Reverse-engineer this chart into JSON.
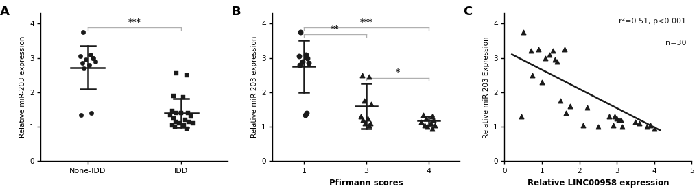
{
  "panel_A": {
    "label": "A",
    "groups": [
      "None-IDD",
      "IDD"
    ],
    "none_idd_data": [
      3.75,
      3.1,
      3.05,
      3.0,
      2.95,
      2.9,
      2.85,
      2.8,
      2.7,
      3.0,
      1.35,
      1.4
    ],
    "idd_data": [
      2.55,
      2.5,
      1.9,
      1.85,
      1.45,
      1.4,
      1.4,
      1.4,
      1.35,
      1.3,
      1.25,
      1.2,
      1.15,
      1.15,
      1.1,
      1.1,
      1.05,
      1.05,
      1.0,
      0.95
    ],
    "none_idd_mean": 2.72,
    "none_idd_sd": 0.62,
    "idd_mean": 1.4,
    "idd_sd": 0.42,
    "ylabel": "Relative miR-203 expression",
    "ylim": [
      0,
      4.3
    ],
    "yticks": [
      0,
      1,
      2,
      3,
      4
    ],
    "sig_label": "***"
  },
  "panel_B": {
    "label": "B",
    "groups": [
      "1",
      "3",
      "4"
    ],
    "score1_data": [
      3.75,
      3.1,
      3.05,
      3.0,
      2.9,
      2.85,
      2.8,
      1.35,
      1.4
    ],
    "score3_data": [
      2.5,
      2.45,
      1.75,
      1.65,
      1.3,
      1.25,
      1.2,
      1.1,
      1.1,
      1.05
    ],
    "score4_data": [
      1.35,
      1.3,
      1.25,
      1.2,
      1.15,
      1.1,
      1.05,
      1.05,
      1.0,
      0.95
    ],
    "score1_mean": 2.75,
    "score1_sd": 0.75,
    "score3_mean": 1.6,
    "score3_sd": 0.65,
    "score4_mean": 1.18,
    "score4_sd": 0.13,
    "ylabel": "Relative miR-203 expression",
    "xlabel": "Pfirmann scores",
    "ylim": [
      0,
      4.3
    ],
    "yticks": [
      0,
      1,
      2,
      3,
      4
    ],
    "sig_1_3": "**",
    "sig_1_4": "***",
    "sig_3_4": "*"
  },
  "panel_C": {
    "label": "C",
    "x_data": [
      0.45,
      0.5,
      0.7,
      0.75,
      0.9,
      1.0,
      1.1,
      1.2,
      1.3,
      1.35,
      1.4,
      1.5,
      1.6,
      1.65,
      1.75,
      2.1,
      2.2,
      2.5,
      2.8,
      2.9,
      2.95,
      3.0,
      3.05,
      3.1,
      3.15,
      3.5,
      3.6,
      3.8,
      3.9,
      4.0
    ],
    "y_data": [
      1.3,
      3.75,
      3.2,
      2.5,
      3.25,
      2.3,
      3.0,
      3.1,
      3.2,
      2.95,
      2.9,
      1.75,
      3.25,
      1.4,
      1.6,
      1.05,
      1.55,
      1.0,
      1.3,
      1.05,
      1.3,
      1.25,
      1.2,
      1.2,
      1.0,
      1.15,
      1.1,
      1.0,
      1.05,
      0.95
    ],
    "line_x": [
      0.2,
      4.15
    ],
    "line_y": [
      3.1,
      0.9
    ],
    "annotation_line1": "r²=0.51, p<0.001",
    "annotation_line2": "n=30",
    "ylabel": "Relative miR-203 Expression",
    "xlabel": "Relative LINC00958 expression",
    "xlim": [
      0,
      5
    ],
    "ylim": [
      0,
      4.3
    ],
    "yticks": [
      0,
      1,
      2,
      3,
      4
    ],
    "xticks": [
      0,
      1,
      2,
      3,
      4,
      5
    ]
  },
  "color": "#1a1a1a",
  "marker_color": "#1a1a1a",
  "sig_line_color": "#b0b0b0",
  "background_color": "#ffffff"
}
